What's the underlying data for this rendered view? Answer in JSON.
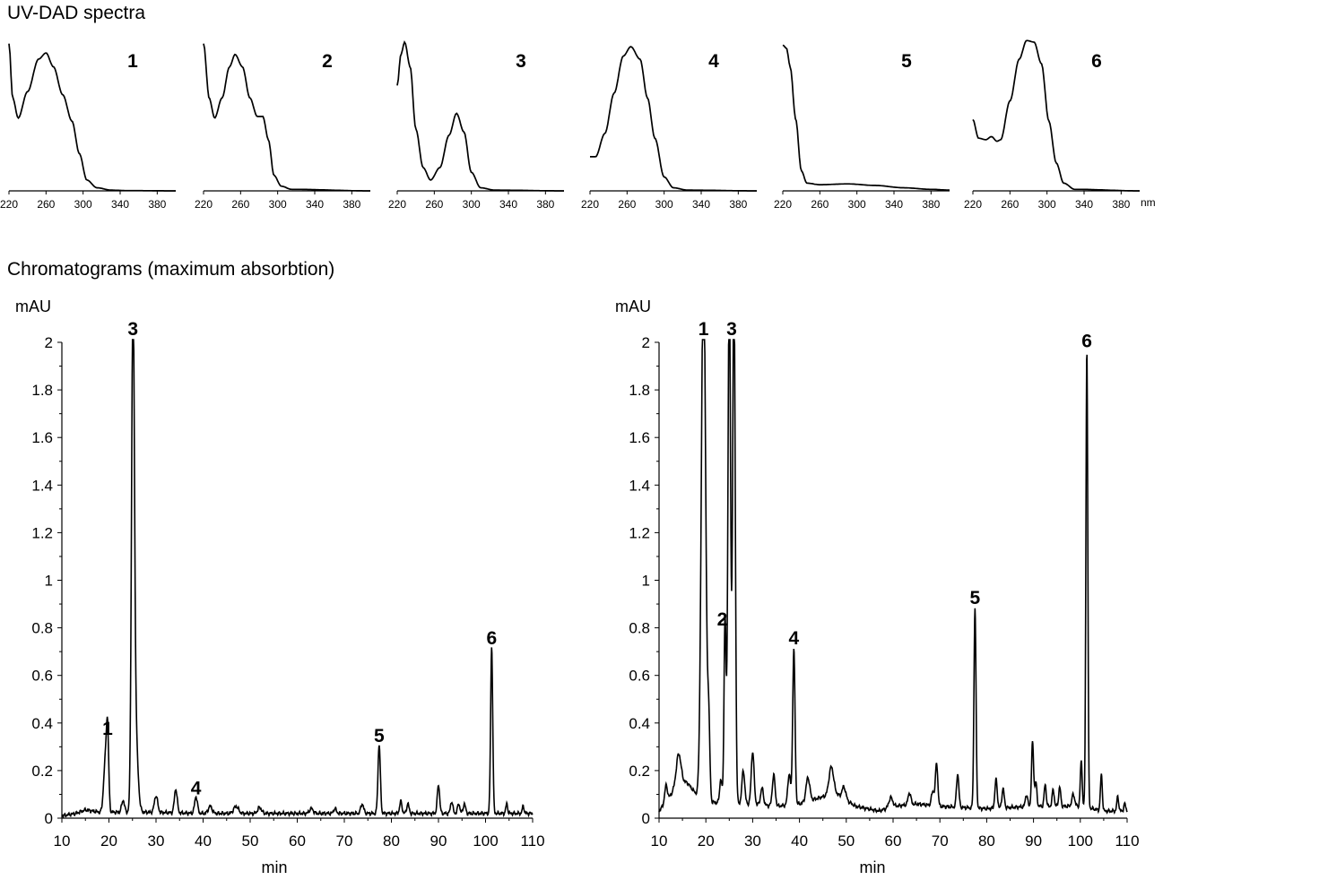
{
  "titles": {
    "spectra": "UV-DAD spectra",
    "chromatograms": "Chromatograms (maximum absorbtion)"
  },
  "spectra": {
    "x_ticks": [
      "220",
      "260",
      "300",
      "340",
      "380"
    ],
    "x_unit": "nm",
    "xlim": [
      220,
      400
    ],
    "panels": [
      {
        "label": "1",
        "points": [
          [
            220,
            0.95
          ],
          [
            224,
            0.6
          ],
          [
            230,
            0.47
          ],
          [
            240,
            0.64
          ],
          [
            252,
            0.85
          ],
          [
            260,
            0.89
          ],
          [
            268,
            0.8
          ],
          [
            278,
            0.62
          ],
          [
            288,
            0.45
          ],
          [
            296,
            0.24
          ],
          [
            304,
            0.07
          ],
          [
            315,
            0.02
          ],
          [
            330,
            0.005
          ],
          [
            345,
            0.002
          ],
          [
            400,
            0.0
          ]
        ]
      },
      {
        "label": "2",
        "points": [
          [
            220,
            0.95
          ],
          [
            226,
            0.6
          ],
          [
            232,
            0.47
          ],
          [
            240,
            0.6
          ],
          [
            248,
            0.8
          ],
          [
            254,
            0.88
          ],
          [
            262,
            0.8
          ],
          [
            270,
            0.6
          ],
          [
            278,
            0.48
          ],
          [
            284,
            0.48
          ],
          [
            290,
            0.33
          ],
          [
            296,
            0.1
          ],
          [
            304,
            0.03
          ],
          [
            315,
            0.01
          ],
          [
            400,
            0.0
          ]
        ]
      },
      {
        "label": "3",
        "points": [
          [
            220,
            0.68
          ],
          [
            224,
            0.88
          ],
          [
            228,
            0.96
          ],
          [
            234,
            0.8
          ],
          [
            240,
            0.4
          ],
          [
            248,
            0.15
          ],
          [
            256,
            0.07
          ],
          [
            266,
            0.15
          ],
          [
            276,
            0.36
          ],
          [
            284,
            0.5
          ],
          [
            292,
            0.38
          ],
          [
            300,
            0.12
          ],
          [
            310,
            0.02
          ],
          [
            325,
            0.005
          ],
          [
            400,
            0.0
          ]
        ]
      },
      {
        "label": "4",
        "points": [
          [
            220,
            0.22
          ],
          [
            226,
            0.22
          ],
          [
            236,
            0.37
          ],
          [
            246,
            0.63
          ],
          [
            256,
            0.87
          ],
          [
            264,
            0.93
          ],
          [
            274,
            0.85
          ],
          [
            282,
            0.6
          ],
          [
            290,
            0.34
          ],
          [
            300,
            0.09
          ],
          [
            310,
            0.02
          ],
          [
            325,
            0.005
          ],
          [
            400,
            0.0
          ]
        ]
      },
      {
        "label": "5",
        "points": [
          [
            220,
            0.94
          ],
          [
            224,
            0.92
          ],
          [
            228,
            0.8
          ],
          [
            234,
            0.46
          ],
          [
            240,
            0.13
          ],
          [
            246,
            0.05
          ],
          [
            260,
            0.04
          ],
          [
            290,
            0.045
          ],
          [
            320,
            0.035
          ],
          [
            350,
            0.02
          ],
          [
            380,
            0.01
          ],
          [
            400,
            0.005
          ]
        ]
      },
      {
        "label": "6",
        "points": [
          [
            220,
            0.46
          ],
          [
            226,
            0.34
          ],
          [
            234,
            0.33
          ],
          [
            240,
            0.35
          ],
          [
            246,
            0.32
          ],
          [
            250,
            0.33
          ],
          [
            260,
            0.58
          ],
          [
            270,
            0.85
          ],
          [
            278,
            0.97
          ],
          [
            286,
            0.96
          ],
          [
            294,
            0.82
          ],
          [
            302,
            0.45
          ],
          [
            310,
            0.18
          ],
          [
            318,
            0.05
          ],
          [
            330,
            0.01
          ],
          [
            400,
            0.0
          ]
        ]
      }
    ]
  },
  "chart_data": [
    {
      "type": "line",
      "title": "",
      "ylabel": "mAU",
      "xlabel": "min",
      "xlim": [
        10,
        110
      ],
      "ylim": [
        0,
        2
      ],
      "x_ticks": [
        "10",
        "20",
        "30",
        "40",
        "50",
        "60",
        "70",
        "80",
        "90",
        "100",
        "110"
      ],
      "y_ticks": [
        "0",
        "0.2",
        "0.4",
        "0.6",
        "0.8",
        "1",
        "1.2",
        "1.4",
        "1.6",
        "1.8",
        "2"
      ],
      "baseline": [
        [
          10,
          0.01
        ],
        [
          13,
          0.02
        ],
        [
          15,
          0.035
        ],
        [
          18,
          0.025
        ],
        [
          28,
          0.025
        ],
        [
          40,
          0.02
        ],
        [
          60,
          0.02
        ],
        [
          80,
          0.02
        ],
        [
          95,
          0.02
        ],
        [
          110,
          0.02
        ]
      ],
      "peaks": [
        {
          "rt": 19.2,
          "h": 0.2,
          "w": 0.35
        },
        {
          "rt": 19.7,
          "h": 0.32,
          "w": 0.25
        },
        {
          "rt": 23.0,
          "h": 0.05,
          "w": 0.3
        },
        {
          "rt": 25.1,
          "h": 2.0,
          "w": 0.3
        },
        {
          "rt": 25.6,
          "h": 0.35,
          "w": 0.5
        },
        {
          "rt": 30.0,
          "h": 0.07,
          "w": 0.35
        },
        {
          "rt": 34.2,
          "h": 0.1,
          "w": 0.3
        },
        {
          "rt": 38.5,
          "h": 0.07,
          "w": 0.3
        },
        {
          "rt": 41.5,
          "h": 0.03,
          "w": 0.4
        },
        {
          "rt": 47.0,
          "h": 0.03,
          "w": 0.5
        },
        {
          "rt": 52.0,
          "h": 0.025,
          "w": 0.4
        },
        {
          "rt": 63.0,
          "h": 0.02,
          "w": 0.4
        },
        {
          "rt": 68.0,
          "h": 0.02,
          "w": 0.3
        },
        {
          "rt": 73.8,
          "h": 0.04,
          "w": 0.3
        },
        {
          "rt": 77.4,
          "h": 0.29,
          "w": 0.25
        },
        {
          "rt": 82.0,
          "h": 0.05,
          "w": 0.25
        },
        {
          "rt": 83.5,
          "h": 0.04,
          "w": 0.25
        },
        {
          "rt": 90.0,
          "h": 0.12,
          "w": 0.25
        },
        {
          "rt": 92.8,
          "h": 0.05,
          "w": 0.25
        },
        {
          "rt": 94.3,
          "h": 0.04,
          "w": 0.25
        },
        {
          "rt": 95.5,
          "h": 0.04,
          "w": 0.25
        },
        {
          "rt": 101.3,
          "h": 0.7,
          "w": 0.22
        },
        {
          "rt": 104.5,
          "h": 0.04,
          "w": 0.2
        },
        {
          "rt": 108.0,
          "h": 0.03,
          "w": 0.2
        }
      ],
      "peak_labels": [
        {
          "text": "1",
          "x": 19.7,
          "y": 0.32
        },
        {
          "text": "3",
          "x": 25.1,
          "y": 2.0
        },
        {
          "text": "4",
          "x": 38.5,
          "y": 0.07
        },
        {
          "text": "5",
          "x": 77.4,
          "y": 0.29
        },
        {
          "text": "6",
          "x": 101.3,
          "y": 0.7
        }
      ]
    },
    {
      "type": "line",
      "title": "",
      "ylabel": "mAU",
      "xlabel": "min",
      "xlim": [
        10,
        110
      ],
      "ylim": [
        0,
        2
      ],
      "x_ticks": [
        "10",
        "20",
        "30",
        "40",
        "50",
        "60",
        "70",
        "80",
        "90",
        "100",
        "110"
      ],
      "y_ticks": [
        "0",
        "0.2",
        "0.4",
        "0.6",
        "0.8",
        "1",
        "1.2",
        "1.4",
        "1.6",
        "1.8",
        "2"
      ],
      "baseline": [
        [
          10,
          0.03
        ],
        [
          12,
          0.08
        ],
        [
          14,
          0.15
        ],
        [
          16,
          0.15
        ],
        [
          18,
          0.1
        ],
        [
          20,
          0.07
        ],
        [
          25,
          0.06
        ],
        [
          30,
          0.06
        ],
        [
          35,
          0.05
        ],
        [
          40,
          0.06
        ],
        [
          45,
          0.09
        ],
        [
          48,
          0.1
        ],
        [
          52,
          0.05
        ],
        [
          57,
          0.03
        ],
        [
          60,
          0.05
        ],
        [
          65,
          0.06
        ],
        [
          70,
          0.05
        ],
        [
          80,
          0.04
        ],
        [
          90,
          0.05
        ],
        [
          100,
          0.05
        ],
        [
          105,
          0.03
        ],
        [
          110,
          0.03
        ]
      ],
      "peaks": [
        {
          "rt": 11.5,
          "h": 0.07,
          "w": 0.3
        },
        {
          "rt": 14.2,
          "h": 0.12,
          "w": 0.5
        },
        {
          "rt": 19.5,
          "h": 2.3,
          "w": 0.45
        },
        {
          "rt": 20.6,
          "h": 0.33,
          "w": 0.25
        },
        {
          "rt": 23.2,
          "h": 0.1,
          "w": 0.25
        },
        {
          "rt": 24.1,
          "h": 0.78,
          "w": 0.22
        },
        {
          "rt": 25.0,
          "h": 2.2,
          "w": 0.28
        },
        {
          "rt": 26.0,
          "h": 2.2,
          "w": 0.28
        },
        {
          "rt": 28.0,
          "h": 0.14,
          "w": 0.3
        },
        {
          "rt": 30.0,
          "h": 0.22,
          "w": 0.3
        },
        {
          "rt": 32.0,
          "h": 0.07,
          "w": 0.3
        },
        {
          "rt": 34.5,
          "h": 0.13,
          "w": 0.3
        },
        {
          "rt": 37.8,
          "h": 0.13,
          "w": 0.3
        },
        {
          "rt": 38.8,
          "h": 0.65,
          "w": 0.25
        },
        {
          "rt": 41.8,
          "h": 0.1,
          "w": 0.4
        },
        {
          "rt": 46.8,
          "h": 0.12,
          "w": 0.5
        },
        {
          "rt": 49.5,
          "h": 0.05,
          "w": 0.4
        },
        {
          "rt": 59.5,
          "h": 0.04,
          "w": 0.4
        },
        {
          "rt": 63.5,
          "h": 0.05,
          "w": 0.3
        },
        {
          "rt": 68.5,
          "h": 0.06,
          "w": 0.3
        },
        {
          "rt": 69.3,
          "h": 0.18,
          "w": 0.25
        },
        {
          "rt": 73.8,
          "h": 0.14,
          "w": 0.25
        },
        {
          "rt": 77.5,
          "h": 0.84,
          "w": 0.22
        },
        {
          "rt": 82.0,
          "h": 0.12,
          "w": 0.25
        },
        {
          "rt": 83.5,
          "h": 0.08,
          "w": 0.25
        },
        {
          "rt": 88.5,
          "h": 0.05,
          "w": 0.25
        },
        {
          "rt": 89.8,
          "h": 0.27,
          "w": 0.22
        },
        {
          "rt": 90.5,
          "h": 0.1,
          "w": 0.22
        },
        {
          "rt": 92.5,
          "h": 0.09,
          "w": 0.22
        },
        {
          "rt": 94.2,
          "h": 0.07,
          "w": 0.22
        },
        {
          "rt": 95.6,
          "h": 0.08,
          "w": 0.22
        },
        {
          "rt": 98.5,
          "h": 0.05,
          "w": 0.3
        },
        {
          "rt": 100.2,
          "h": 0.19,
          "w": 0.2
        },
        {
          "rt": 101.4,
          "h": 1.93,
          "w": 0.2
        },
        {
          "rt": 104.5,
          "h": 0.15,
          "w": 0.2
        },
        {
          "rt": 108.0,
          "h": 0.06,
          "w": 0.2
        },
        {
          "rt": 109.5,
          "h": 0.03,
          "w": 0.2
        }
      ],
      "peak_labels": [
        {
          "text": "1",
          "x": 19.5,
          "y": 2.0
        },
        {
          "text": "2",
          "x": 23.5,
          "y": 0.78
        },
        {
          "text": "3",
          "x": 25.5,
          "y": 2.0
        },
        {
          "text": "4",
          "x": 38.8,
          "y": 0.7
        },
        {
          "text": "5",
          "x": 77.5,
          "y": 0.87
        },
        {
          "text": "6",
          "x": 101.4,
          "y": 1.95
        }
      ]
    }
  ]
}
